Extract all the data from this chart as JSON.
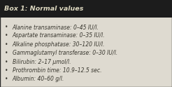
{
  "title": "Box 1: Normal values",
  "title_bg": "#1c1c1c",
  "title_color": "#ddd8c0",
  "body_bg": "#dedad0",
  "border_color": "#2a2a2a",
  "bullet_color": "#3a3830",
  "text_color": "#3a3830",
  "items": [
    "Alanine transaminase: 0–45 IU/l.",
    "Aspartate transaminase: 0–35 IU/l.",
    "Alkaline phosphatase: 30–120 IU/l.",
    "Gammaglutamyl transferase: 0–30 IU/l.",
    "Bilirubin: 2–17 μmol/l.",
    "Prothrombin time: 10.9–12.5 sec.",
    "Albumin: 40–60 g/l."
  ],
  "title_fontsize": 6.8,
  "body_fontsize": 5.5,
  "fig_width": 2.46,
  "fig_height": 1.24,
  "dpi": 100
}
